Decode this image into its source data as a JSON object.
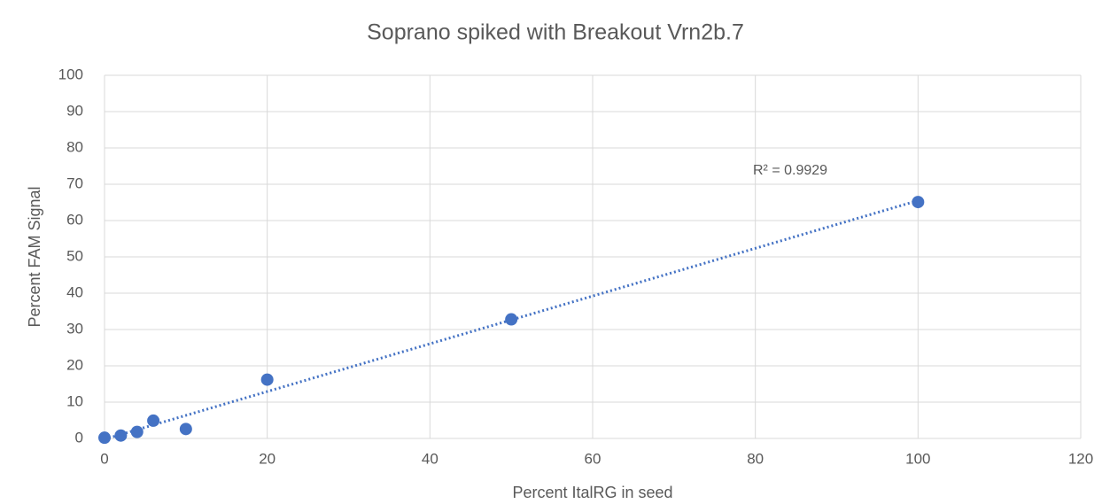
{
  "chart_data": {
    "type": "scatter",
    "title": "Soprano spiked with Breakout Vrn2b.7",
    "x_label": "Percent ItalRG in seed",
    "y_label": "Percent FAM Signal",
    "x": [
      0,
      2,
      4,
      6,
      10,
      20,
      50,
      100
    ],
    "values": [
      0.2,
      0.8,
      1.8,
      4.9,
      2.6,
      16.2,
      32.8,
      65.1
    ],
    "color": "#4472c4",
    "trendline": "linear",
    "annotation": "R² = 0.9929",
    "xlim": [
      0,
      120
    ],
    "xticks": [
      0,
      20,
      40,
      60,
      80,
      100,
      120
    ],
    "ylim": [
      0,
      100
    ],
    "yticks": [
      0,
      10,
      20,
      30,
      40,
      50,
      60,
      70,
      80,
      90,
      100
    ],
    "grid": true
  }
}
